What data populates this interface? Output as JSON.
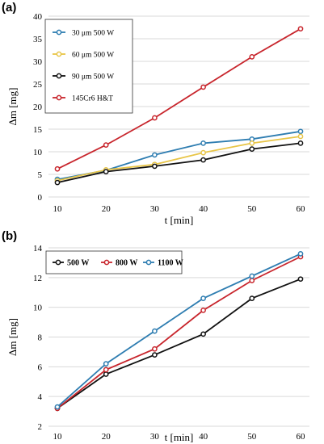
{
  "chart_data": [
    {
      "panel_label": "(a)",
      "type": "line",
      "xlabel": "t [min]",
      "ylabel": "Δm [mg]",
      "x": [
        10,
        20,
        30,
        40,
        50,
        60
      ],
      "xticks": [
        "10",
        "20",
        "30",
        "40",
        "50",
        "60"
      ],
      "ylim": [
        0,
        40
      ],
      "yticks": [
        "0",
        "5",
        "10",
        "15",
        "20",
        "25",
        "30",
        "35",
        "40"
      ],
      "grid": "horizontal",
      "legend": "top-left",
      "series": [
        {
          "name": "30 μm  500 W",
          "color": "#2e7db1",
          "values": [
            3.9,
            5.9,
            9.3,
            11.9,
            12.8,
            14.5
          ]
        },
        {
          "name": "60 μm  500 W",
          "color": "#e8c547",
          "values": [
            3.6,
            6.0,
            7.2,
            9.8,
            11.9,
            13.4
          ]
        },
        {
          "name": "90 μm  500 W",
          "color": "#111111",
          "values": [
            3.2,
            5.6,
            6.8,
            8.2,
            10.6,
            11.9
          ]
        },
        {
          "name": "145Cr6 H&T",
          "color": "#c8252c",
          "values": [
            6.2,
            11.5,
            17.5,
            24.3,
            31.0,
            37.2
          ]
        }
      ]
    },
    {
      "panel_label": "(b)",
      "type": "line",
      "xlabel": "t [min]",
      "ylabel": "Δm [mg]",
      "x": [
        10,
        20,
        30,
        40,
        50,
        60
      ],
      "xticks": [
        "10",
        "20",
        "30",
        "40",
        "50",
        "60"
      ],
      "ylim": [
        2,
        14
      ],
      "yticks": [
        "2",
        "4",
        "6",
        "8",
        "10",
        "12",
        "14"
      ],
      "grid": "horizontal",
      "legend": "top-left",
      "series": [
        {
          "name": "500 W",
          "color": "#111111",
          "values": [
            3.2,
            5.5,
            6.8,
            8.2,
            10.6,
            11.9
          ]
        },
        {
          "name": "800 W",
          "color": "#c8252c",
          "values": [
            3.2,
            5.8,
            7.2,
            9.8,
            11.8,
            13.4
          ]
        },
        {
          "name": "1100 W",
          "color": "#2e7db1",
          "values": [
            3.3,
            6.2,
            8.4,
            10.6,
            12.1,
            13.6
          ]
        }
      ]
    }
  ]
}
